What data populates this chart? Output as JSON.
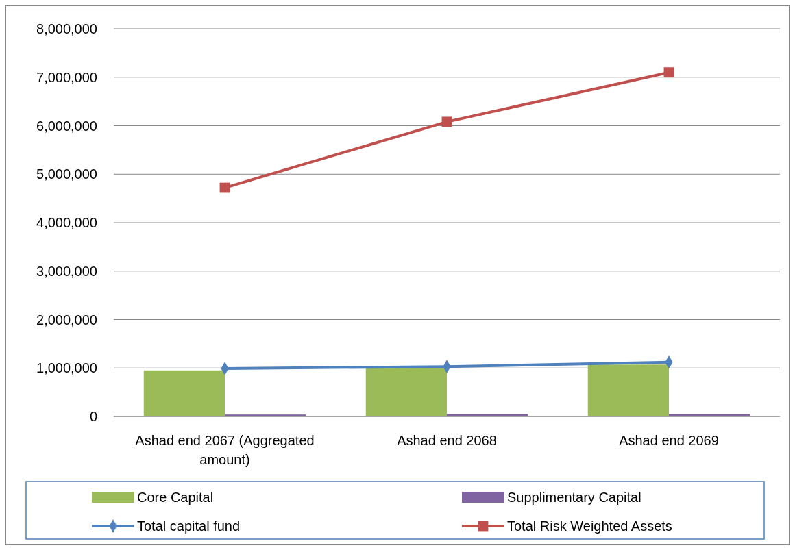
{
  "chart_data": {
    "type": "bar",
    "categories": [
      "Ashad end 2067 (Aggregated amount)",
      "Ashad end 2068",
      "Ashad end 2069"
    ],
    "series": [
      {
        "name": "Core Capital",
        "color": "#9bbb59",
        "values": [
          950000,
          990000,
          1070000
        ]
      },
      {
        "name": "Supplimentary Capital",
        "color": "#8064a2",
        "values": [
          40000,
          50000,
          50000
        ]
      },
      {
        "name": "Total capital fund",
        "type": "line",
        "color": "#4f81bd",
        "marker": "diamond",
        "values": [
          990000,
          1030000,
          1120000
        ]
      },
      {
        "name": "Total Risk Weighted Assets",
        "type": "line",
        "color": "#c0504d",
        "marker": "square",
        "values": [
          4720000,
          6080000,
          7100000
        ]
      }
    ],
    "ylim": [
      0,
      8000000
    ],
    "yticks": [
      {
        "value": 0,
        "label": "0"
      },
      {
        "value": 1000000,
        "label": "1,000,000"
      },
      {
        "value": 2000000,
        "label": "2,000,000"
      },
      {
        "value": 3000000,
        "label": "3,000,000"
      },
      {
        "value": 4000000,
        "label": "4,000,000"
      },
      {
        "value": 5000000,
        "label": "5,000,000"
      },
      {
        "value": 6000000,
        "label": "6,000,000"
      },
      {
        "value": 7000000,
        "label": "7,000,000"
      },
      {
        "value": 8000000,
        "label": "8,000,000"
      }
    ],
    "grid": "y",
    "legend": "bottom"
  }
}
